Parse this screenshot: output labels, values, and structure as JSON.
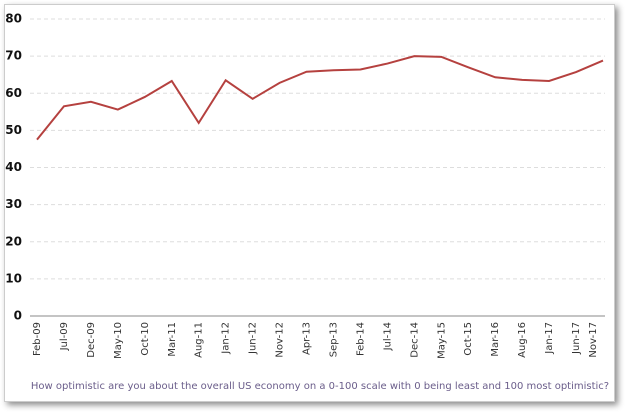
{
  "chart_data": {
    "type": "line",
    "x_label": "How optimistic  are you about the overall US economy on a 0-100 scale with 0 being least and 100 most optimistic?",
    "categories": [
      "Feb-09",
      "Jul-09",
      "Dec-09",
      "May-10",
      "Oct-10",
      "Mar-11",
      "Aug-11",
      "Jan-12",
      "Jun-12",
      "Nov-12",
      "Apr-13",
      "Sep-13",
      "Feb-14",
      "Jul-14",
      "Dec-14",
      "May-15",
      "Oct-15",
      "Mar-16",
      "Aug-16",
      "Jan-17",
      "Jun-17",
      "Nov-17"
    ],
    "series": [
      {
        "color": "#b5413f",
        "values": [
          47.5,
          56.5,
          57.7,
          55.6,
          59,
          63.3,
          52,
          63.5,
          58.5,
          62.8,
          65.8,
          66.2,
          66.4,
          68,
          70,
          69.8,
          67,
          64.3,
          63.6,
          63.3,
          65.7,
          68.8
        ]
      }
    ],
    "ylim": [
      0,
      80
    ],
    "yticks": [
      0,
      10,
      20,
      30,
      40,
      50,
      60,
      70,
      80
    ],
    "grid": true
  }
}
